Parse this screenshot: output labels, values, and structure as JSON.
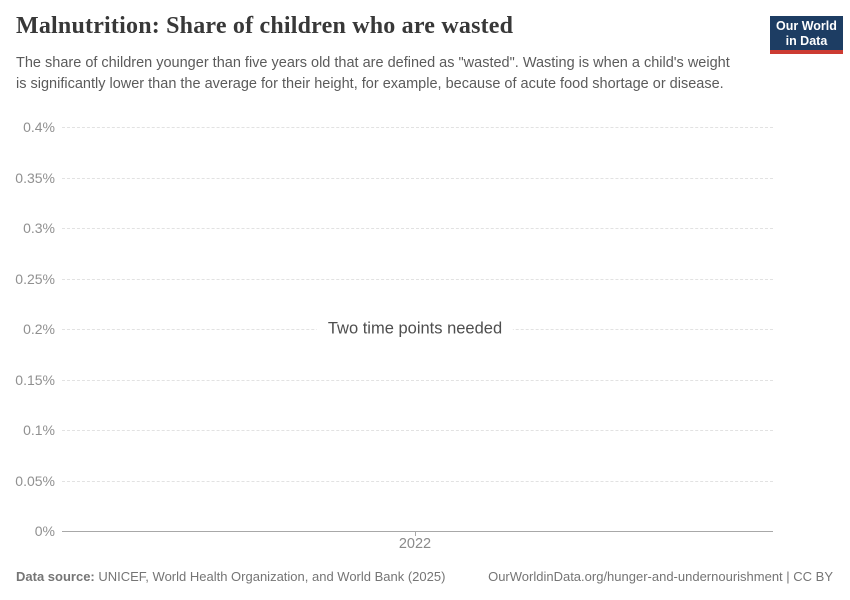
{
  "header": {
    "title": "Malnutrition: Share of children who are wasted",
    "subtitle": "The share of children younger than five years old that are defined as \"wasted\". Wasting is when a child's weight is significantly lower than the average for their height, for example, because of acute food shortage or disease."
  },
  "logo": {
    "line1": "Our World",
    "line2": "in Data",
    "bg_color": "#1d3d63",
    "accent_color": "#cc3b32"
  },
  "chart_data": {
    "type": "line",
    "title": "Malnutrition: Share of children who are wasted",
    "note": "Two time points needed",
    "series": [],
    "categories": [],
    "x_ticks": [
      "2022"
    ],
    "xlabel": "",
    "ylabel": "",
    "ylim": [
      0,
      0.4
    ],
    "y_unit": "%",
    "grid": true,
    "legend": "none",
    "y_ticks": [
      {
        "value": 0.4,
        "label": "0.4%"
      },
      {
        "value": 0.35,
        "label": "0.35%"
      },
      {
        "value": 0.3,
        "label": "0.3%"
      },
      {
        "value": 0.25,
        "label": "0.25%"
      },
      {
        "value": 0.2,
        "label": "0.2%"
      },
      {
        "value": 0.15,
        "label": "0.15%"
      },
      {
        "value": 0.1,
        "label": "0.1%"
      },
      {
        "value": 0.05,
        "label": "0.05%"
      },
      {
        "value": 0,
        "label": "0%"
      }
    ]
  },
  "footer": {
    "source_label": "Data source:",
    "source_text": " UNICEF, World Health Organization, and World Bank (2025)",
    "link_text": "OurWorldinData.org/hunger-and-undernourishment | CC BY"
  }
}
